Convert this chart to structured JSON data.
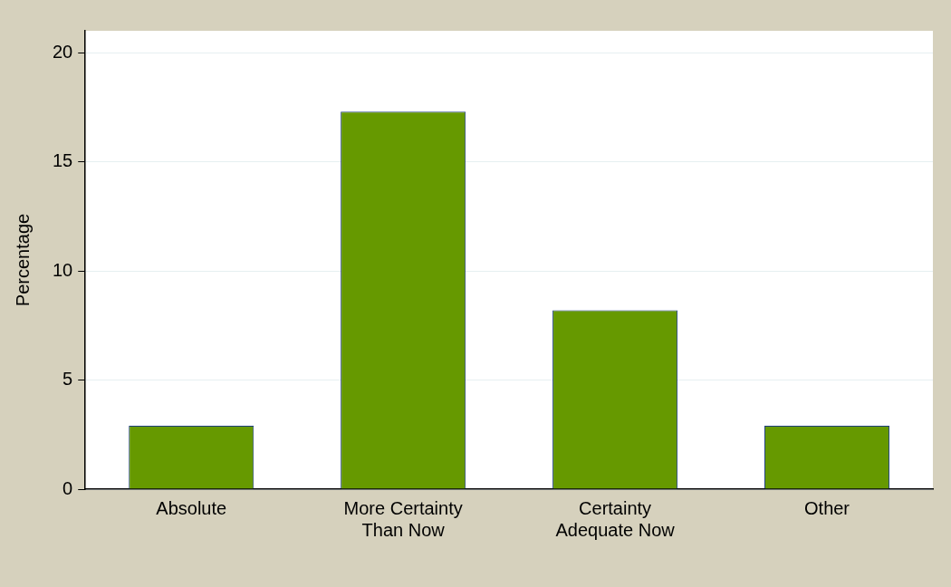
{
  "chart_data": {
    "type": "bar",
    "ylabel": "Percentage",
    "categories": [
      "Absolute",
      "More Certainty Than Now",
      "Certainty Adequate Now",
      "Other"
    ],
    "values": [
      2.9,
      17.3,
      8.2,
      2.9
    ],
    "color": "#669900",
    "ylim": [
      0,
      21
    ],
    "yticks": [
      0,
      5,
      10,
      15,
      20
    ],
    "grid": "y",
    "legend": false
  }
}
